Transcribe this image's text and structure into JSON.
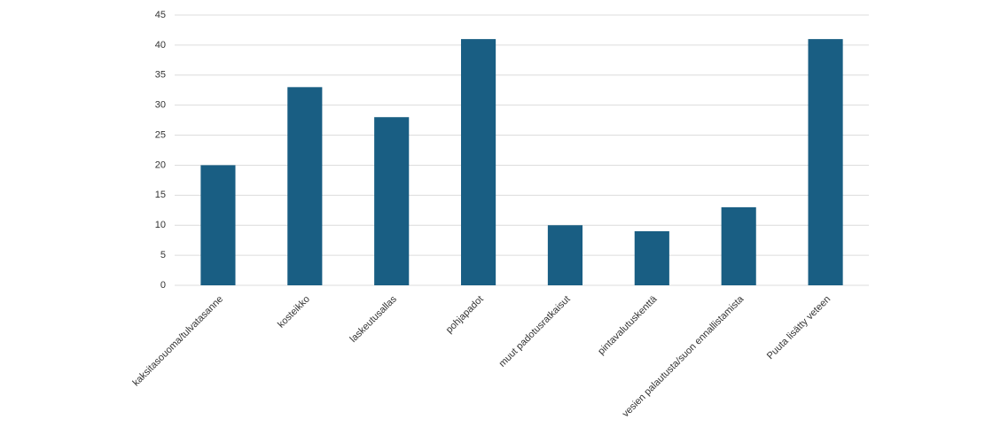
{
  "chart_data": {
    "type": "bar",
    "categories": [
      "kaksitasouoma/tulvatasanne",
      "kosteikko",
      "laskeutusallas",
      "pohjapadot",
      "muut padotusratkaisut",
      "pintavalutuskenttä",
      "vesien palautusta/suon ennallistamista",
      "Puuta lisätty veteen"
    ],
    "values": [
      20,
      33,
      28,
      41,
      10,
      9,
      13,
      41
    ],
    "color": "#195e83",
    "ylim": [
      0,
      45
    ],
    "yticks": [
      0,
      5,
      10,
      15,
      20,
      25,
      30,
      35,
      40,
      45
    ],
    "grid": true
  }
}
